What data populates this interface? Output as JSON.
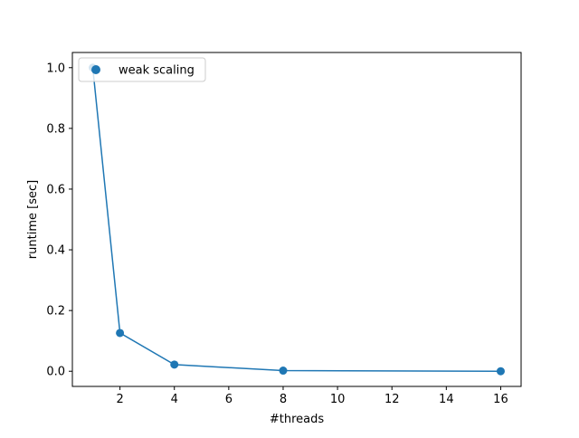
{
  "chart_data": {
    "type": "line",
    "title": "",
    "xlabel": "#threads",
    "ylabel": "runtime [sec]",
    "xlim": [
      0.25,
      16.75
    ],
    "ylim": [
      -0.05,
      1.05
    ],
    "xticks": [
      2,
      4,
      6,
      8,
      10,
      12,
      14,
      16
    ],
    "yticks": [
      0.0,
      0.2,
      0.4,
      0.6,
      0.8,
      1.0
    ],
    "xtick_labels": [
      "2",
      "4",
      "6",
      "8",
      "10",
      "12",
      "14",
      "16"
    ],
    "ytick_labels": [
      "0.0",
      "0.2",
      "0.4",
      "0.6",
      "0.8",
      "1.0"
    ],
    "grid": false,
    "legend_position": "top-left",
    "series": [
      {
        "name": "weak scaling",
        "color": "#1f77b4",
        "marker": "circle",
        "x": [
          1,
          2,
          4,
          8,
          16
        ],
        "y": [
          1.0,
          0.126,
          0.022,
          0.002,
          0.0
        ]
      }
    ]
  }
}
